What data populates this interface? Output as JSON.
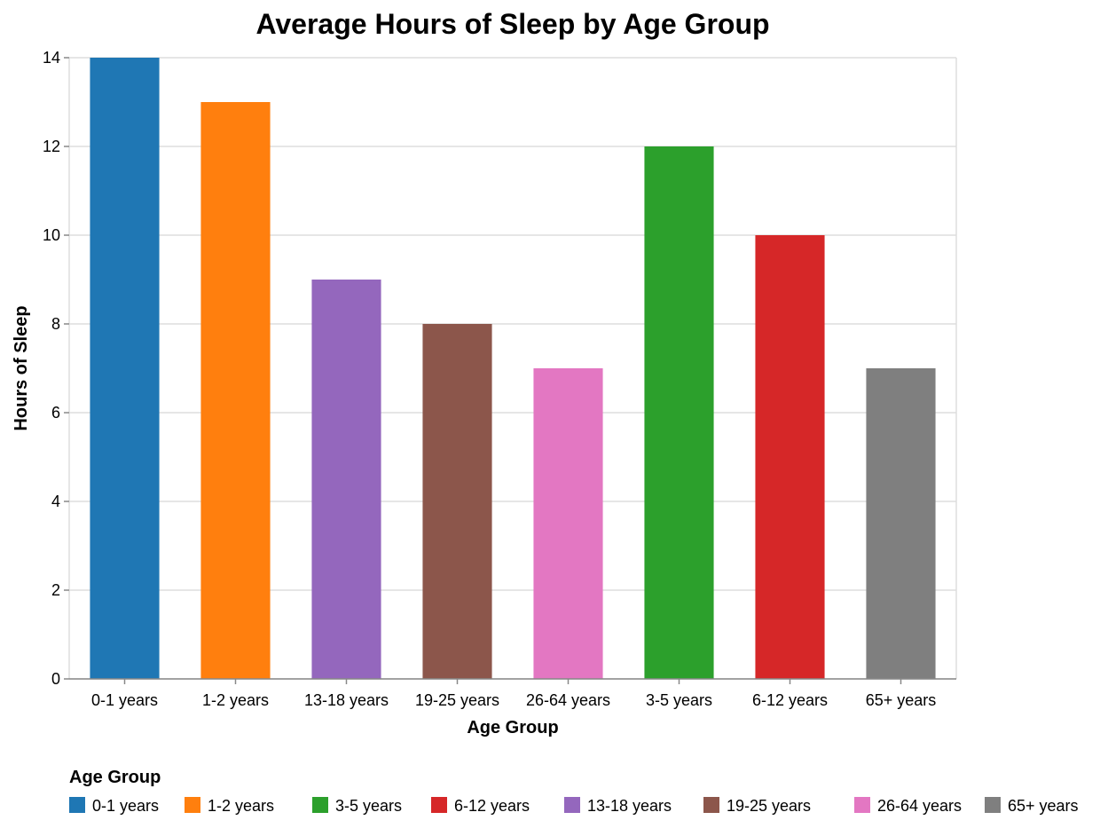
{
  "chart_data": {
    "type": "bar",
    "title": "Average Hours of Sleep by Age Group",
    "xlabel": "Age Group",
    "ylabel": "Hours of Sleep",
    "ylim": [
      0,
      14
    ],
    "yticks": [
      0,
      2,
      4,
      6,
      8,
      10,
      12,
      14
    ],
    "grid": true,
    "categories": [
      "0-1 years",
      "1-2 years",
      "13-18 years",
      "19-25 years",
      "26-64 years",
      "3-5 years",
      "6-12 years",
      "65+ years"
    ],
    "values": [
      14,
      13,
      9,
      8,
      7,
      12,
      10,
      7
    ],
    "legend": {
      "title": "Age Group",
      "placement": "bottom",
      "items": [
        {
          "label": "0-1 years",
          "color": "#1f77b4"
        },
        {
          "label": "1-2 years",
          "color": "#ff7f0e"
        },
        {
          "label": "3-5 years",
          "color": "#2ca02c"
        },
        {
          "label": "6-12 years",
          "color": "#d62728"
        },
        {
          "label": "13-18 years",
          "color": "#9467bd"
        },
        {
          "label": "19-25 years",
          "color": "#8c564b"
        },
        {
          "label": "26-64 years",
          "color": "#e377c2"
        },
        {
          "label": "65+ years",
          "color": "#7f7f7f"
        }
      ]
    }
  }
}
